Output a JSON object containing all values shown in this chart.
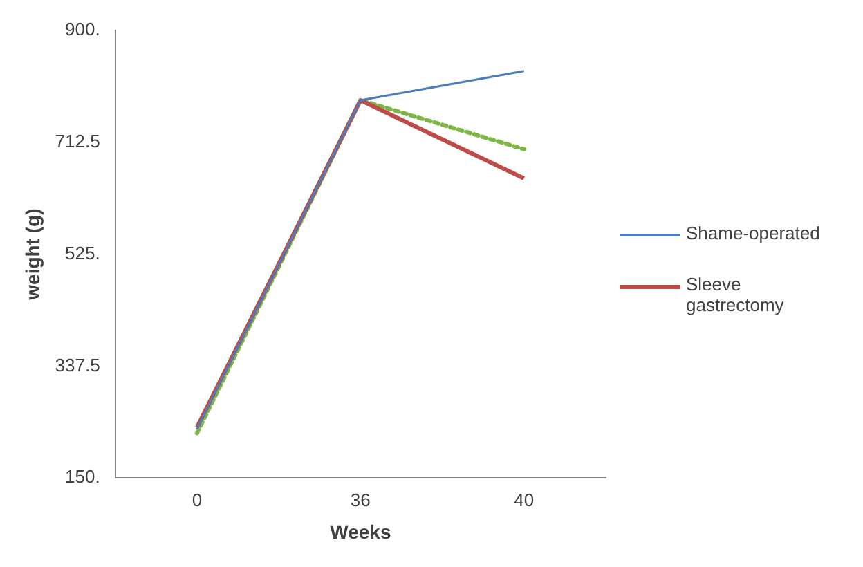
{
  "chart_data": {
    "type": "line",
    "xlabel": "Weeks",
    "ylabel": "weight (g)",
    "categories": [
      "0",
      "36",
      "40"
    ],
    "series": [
      {
        "name": "Shame-operated",
        "color": "#4a7ebb",
        "values": [
          232,
          783,
          832
        ]
      },
      {
        "name": "Sleeve gastrectomy",
        "color": "#be4b48",
        "values": [
          235,
          783,
          652
        ]
      },
      {
        "color": "#7eb646",
        "values": [
          225,
          783,
          701
        ],
        "line_style": "dotted"
      }
    ],
    "ylim": [
      150,
      900
    ],
    "yticks": [
      {
        "value": 150,
        "label": "150."
      },
      {
        "value": 337.5,
        "label": "337.5"
      },
      {
        "value": 525,
        "label": "525."
      },
      {
        "value": 712.5,
        "label": "712.5"
      },
      {
        "value": 900,
        "label": "900."
      }
    ],
    "grid": false,
    "legend": "right",
    "marker": "none",
    "line_style": "solid"
  }
}
